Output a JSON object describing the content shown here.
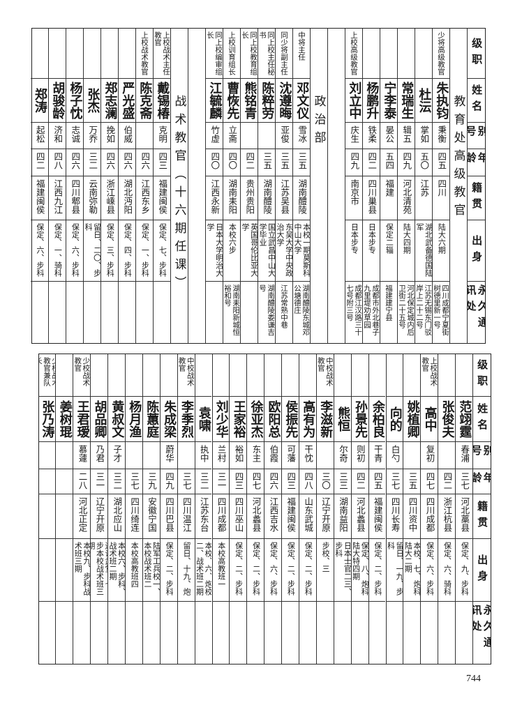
{
  "headers": [
    "级职",
    "姓名",
    "别号",
    "年龄",
    "籍贯",
    "出身",
    "永久通讯处"
  ],
  "upper": {
    "columns": [
      {
        "type": "section",
        "label": "教育处高级教官"
      },
      {
        "type": "person",
        "rank": "少将高级教官",
        "name": "朱执钧",
        "alias": "秉衡",
        "age": "四五",
        "native": "四川",
        "origin": "陆大六期",
        "address": "四川成都宁夏街树德里新一号"
      },
      {
        "type": "person",
        "rank": "",
        "name": "杜沄",
        "alias": "掌如",
        "age": "五〇",
        "native": "江苏",
        "origin": "湖北武备德国陆军",
        "address": "江苏无锡东门驳岸上二十二号"
      },
      {
        "type": "person",
        "rank": "",
        "name": "常瑞生",
        "alias": "辑五",
        "age": "四九",
        "native": "河北清苑",
        "origin": "陆大四期",
        "address": "河北保定城内后卫街二十五号"
      },
      {
        "type": "person",
        "rank": "",
        "name": "宁李泰",
        "alias": "晏公",
        "age": "五四",
        "native": "福建",
        "origin": "保定二辎",
        "address": "福建建宁县"
      },
      {
        "type": "person",
        "rank": "",
        "name": "杨鹏升",
        "alias": "铁柔",
        "age": "四二",
        "native": "四川巢县",
        "origin": "日本步专",
        "address": "成都市外北巷子九里堤劝草园"
      },
      {
        "type": "person",
        "rank": "上校高级教官",
        "name": "刘立中",
        "alias": "庆生",
        "age": "四九",
        "native": "南京市",
        "origin": "日本步专",
        "address": "成都江汉路三十七号附三号"
      },
      {
        "type": "blank"
      },
      {
        "type": "section",
        "label": "政治部"
      },
      {
        "type": "person",
        "rank": "中将主任",
        "name": "邓文仪",
        "alias": "雪冰",
        "age": "三五",
        "native": "湖南醴陵",
        "origin": "本校一期莫斯科中山大学",
        "address": "湖南醴陵东城邓公塘德庄"
      },
      {
        "type": "person",
        "rank": "同少将副主任",
        "name": "沈遵晦",
        "alias": "亚俊",
        "age": "三五",
        "native": "江苏吴县",
        "origin": "东吴大学中央政治大学",
        "address": "江苏常熟中巷"
      },
      {
        "type": "person",
        "rank": "同上校主任秘书",
        "name": "陈粹劳",
        "alias": "",
        "age": "三五",
        "native": "湖南醴陵",
        "origin": "国立武昌中山大学毕业",
        "address": "湖南醴陵娄谦吉号"
      },
      {
        "type": "person",
        "rank": "同上校教育组长",
        "name": "熊铭青",
        "alias": "",
        "age": "四二",
        "native": "贵州贵阳",
        "origin": "英国哥伦比亚大学",
        "address": ""
      },
      {
        "type": "person",
        "rank": "上校训育组长",
        "name": "曹恢先",
        "alias": "立斋",
        "age": "四〇",
        "native": "湖南耒阳",
        "origin": "本校六步",
        "address": "湖南耒阳新城恒裕和号"
      },
      {
        "type": "person",
        "rank": "同上校编审组长",
        "name": "江毓麟",
        "alias": "竹虚",
        "age": "四〇",
        "native": "江西永新",
        "origin": "日本大学明治大学",
        "address": ""
      },
      {
        "type": "blank"
      },
      {
        "type": "section",
        "label": "战术教官（十六期任课）"
      },
      {
        "type": "person",
        "rank": "上校战术主任教官",
        "name": "戴锡椿",
        "alias": "克明",
        "age": "四三",
        "native": "福建闽侯",
        "origin": "保定、七、步科",
        "address": ""
      },
      {
        "type": "person",
        "rank": "上校战术教官",
        "name": "陈克斋",
        "alias": "",
        "age": "四六",
        "native": "江西东乡",
        "origin": "保定、一、步科",
        "address": ""
      },
      {
        "type": "person",
        "rank": "",
        "name": "严光盛",
        "alias": "伯威",
        "age": "四六",
        "native": "湖北沔阳",
        "origin": "保定、四、步科",
        "address": ""
      },
      {
        "type": "person",
        "rank": "",
        "name": "郑志澜",
        "alias": "挽如",
        "age": "四六",
        "native": "浙江嵊县",
        "origin": "保定、三、步科",
        "address": ""
      },
      {
        "type": "person",
        "rank": "",
        "name": "张杰",
        "alias": "万乔",
        "age": "三二",
        "native": "云南弥勒",
        "origin": "留日、二〇、步科",
        "address": ""
      },
      {
        "type": "person",
        "rank": "",
        "name": "杨子忱",
        "alias": "志诚",
        "age": "四六",
        "native": "四川郫县",
        "origin": "保定、六、步科",
        "address": ""
      },
      {
        "type": "person",
        "rank": "",
        "name": "胡骏龄",
        "alias": "济和",
        "age": "四八",
        "native": "江西九江",
        "origin": "保定、一、骑科",
        "address": ""
      },
      {
        "type": "person",
        "rank": "",
        "name": "郑涛",
        "alias": "起松",
        "age": "四二",
        "native": "福建闽侯",
        "origin": "保定、六、步科",
        "address": ""
      }
    ]
  },
  "lower": {
    "columns": [
      {
        "type": "person",
        "rank": "",
        "name": "范翊霆",
        "alias": "春浦",
        "age": "三七",
        "native": "河北藁县",
        "origin": "保定、九、步科",
        "address": ""
      },
      {
        "type": "person",
        "rank": "",
        "name": "张俊夫",
        "alias": "",
        "age": "四二",
        "native": "浙江杭县",
        "origin": "保定、六、骑科",
        "address": ""
      },
      {
        "type": "person",
        "rank": "上校战术教官",
        "name": "高中",
        "alias": "复初",
        "age": "四七",
        "native": "四川成都",
        "origin": "保定、六、步科",
        "address": ""
      },
      {
        "type": "person",
        "rank": "",
        "name": "姚植卿",
        "alias": "",
        "age": "三五",
        "native": "四川资中",
        "origin": "本校、七、炮科陆大二期",
        "address": ""
      },
      {
        "type": "person",
        "rank": "",
        "name": "向的",
        "alias": "白勺",
        "age": "三七",
        "native": "四川长寿",
        "origin": "留日、一九、步科",
        "address": ""
      },
      {
        "type": "person",
        "rank": "",
        "name": "余柏良",
        "alias": "干青",
        "age": "四五",
        "native": "福建闽侯",
        "origin": "保定、二、步科",
        "address": ""
      },
      {
        "type": "person",
        "rank": "",
        "name": "孙景先",
        "alias": "则初",
        "age": "四二",
        "native": "河北蠡县",
        "origin": "保定、八、炮科陆大特四期",
        "address": ""
      },
      {
        "type": "person",
        "rank": "",
        "name": "熊恒",
        "alias": "尔奇",
        "age": "三三",
        "native": "湖南益阳",
        "origin": "日本士官二三、步科",
        "address": ""
      },
      {
        "type": "person",
        "rank": "中校战术教官",
        "name": "李滋新",
        "alias": "",
        "age": "三〇",
        "native": "辽宁开原",
        "origin": "步校、三",
        "address": ""
      },
      {
        "type": "person",
        "rank": "",
        "name": "高有为",
        "alias": "干忱",
        "age": "四八",
        "native": "山东武城",
        "origin": "保定、二、步科",
        "address": ""
      },
      {
        "type": "person",
        "rank": "",
        "name": "侯振先",
        "alias": "可藩",
        "age": "四三",
        "native": "福建闽侯",
        "origin": "保定、二、步科",
        "address": ""
      },
      {
        "type": "person",
        "rank": "",
        "name": "欧阳总",
        "alias": "伯霞",
        "age": "四六",
        "native": "江西吉水",
        "origin": "保定、六、步科",
        "address": ""
      },
      {
        "type": "person",
        "rank": "",
        "name": "徐亚杰",
        "alias": "东主",
        "age": "四七",
        "native": "河北蠡县",
        "origin": "保定、二、步科",
        "address": ""
      },
      {
        "type": "person",
        "rank": "",
        "name": "王家裕",
        "alias": "裕如",
        "age": "四三",
        "native": "四川巫山",
        "origin": "保定、二、步科",
        "address": ""
      },
      {
        "type": "person",
        "rank": "",
        "name": "刘少华",
        "alias": "兰村",
        "age": "三一",
        "native": "四川成都",
        "origin": "本校高教班一",
        "address": ""
      },
      {
        "type": "person",
        "rank": "",
        "name": "袁啸",
        "alias": "执中",
        "age": "三二",
        "native": "江苏东台",
        "origin": "本校、六、炮校二、战术班二期",
        "address": ""
      },
      {
        "type": "person",
        "rank": "中校战术教官",
        "name": "李季烈",
        "alias": "",
        "age": "三七",
        "native": "四川温江",
        "origin": "留日、十九、炮",
        "address": ""
      },
      {
        "type": "person",
        "rank": "",
        "name": "朱成梁",
        "alias": "蔚华",
        "age": "四九",
        "native": "四川巴县",
        "origin": "保定、二、步科",
        "address": ""
      },
      {
        "type": "person",
        "rank": "",
        "name": "陈蕙庭",
        "alias": "",
        "age": "三九",
        "native": "安徽宁国",
        "origin": "陆军工兵校一、本校战术班二",
        "address": ""
      },
      {
        "type": "person",
        "rank": "",
        "name": "杨月渔",
        "alias": "",
        "age": "三七",
        "native": "四川绮连",
        "origin": "本校高教班四",
        "address": ""
      },
      {
        "type": "person",
        "rank": "",
        "name": "黄叔文",
        "alias": "子才",
        "age": "三二",
        "native": "湖北应山",
        "origin": "本校六、步科、战术班二期",
        "address": ""
      },
      {
        "type": "person",
        "rank": "",
        "name": "胡品卿",
        "alias": "乃君",
        "age": "三一",
        "native": "辽宁开原",
        "origin": "辽讲武堂、七、步本校战术班三期",
        "address": ""
      },
      {
        "type": "person",
        "rank": "少校战术教官",
        "name": "王君瑷",
        "alias": "慕蘧",
        "age": "二八",
        "native": "河北正定",
        "origin": "本校九、步科战术班三期",
        "address": ""
      },
      {
        "type": "person",
        "rank": "",
        "name": "姜树琨",
        "alias": "",
        "age": "",
        "native": "",
        "origin": "",
        "address": ""
      },
      {
        "type": "person",
        "rank": "少校战术教官兼队长",
        "name": "张乃涛",
        "alias": "",
        "age": "",
        "native": "",
        "origin": "",
        "address": ""
      }
    ]
  },
  "page_number": "744"
}
